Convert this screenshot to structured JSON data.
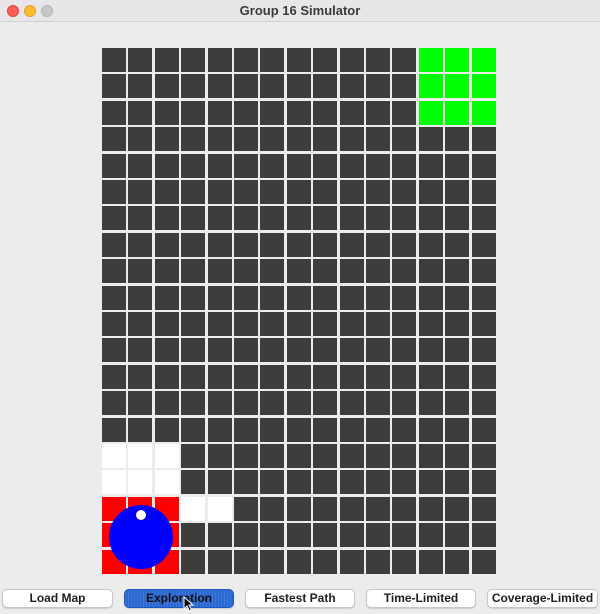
{
  "window": {
    "title": "Group 16 Simulator"
  },
  "arena": {
    "columns": 15,
    "rows": 20,
    "colors": {
      "unexplored": "#3d3d3d",
      "explored": "#ffffff",
      "start_zone": "#ff0000",
      "goal_zone": "#00ff00",
      "robot": "#0000ff",
      "robot_heading": "#ffffff"
    },
    "goal_zone": {
      "col_start": 12,
      "col_end": 14,
      "row_start": 0,
      "row_end": 2
    },
    "start_zone": {
      "col_start": 0,
      "col_end": 2,
      "row_start": 17,
      "row_end": 19
    },
    "explored_cells": [
      [
        0,
        15
      ],
      [
        1,
        15
      ],
      [
        2,
        15
      ],
      [
        0,
        16
      ],
      [
        1,
        16
      ],
      [
        2,
        16
      ],
      [
        3,
        17
      ],
      [
        4,
        17
      ]
    ],
    "robot": {
      "col": 1,
      "row": 18,
      "heading": "up"
    }
  },
  "buttons": [
    {
      "label": "Load Map",
      "active": false
    },
    {
      "label": "Exploration",
      "active": true
    },
    {
      "label": "Fastest Path",
      "active": false
    },
    {
      "label": "Time-Limited",
      "active": false
    },
    {
      "label": "Coverage-Limited",
      "active": false
    }
  ]
}
